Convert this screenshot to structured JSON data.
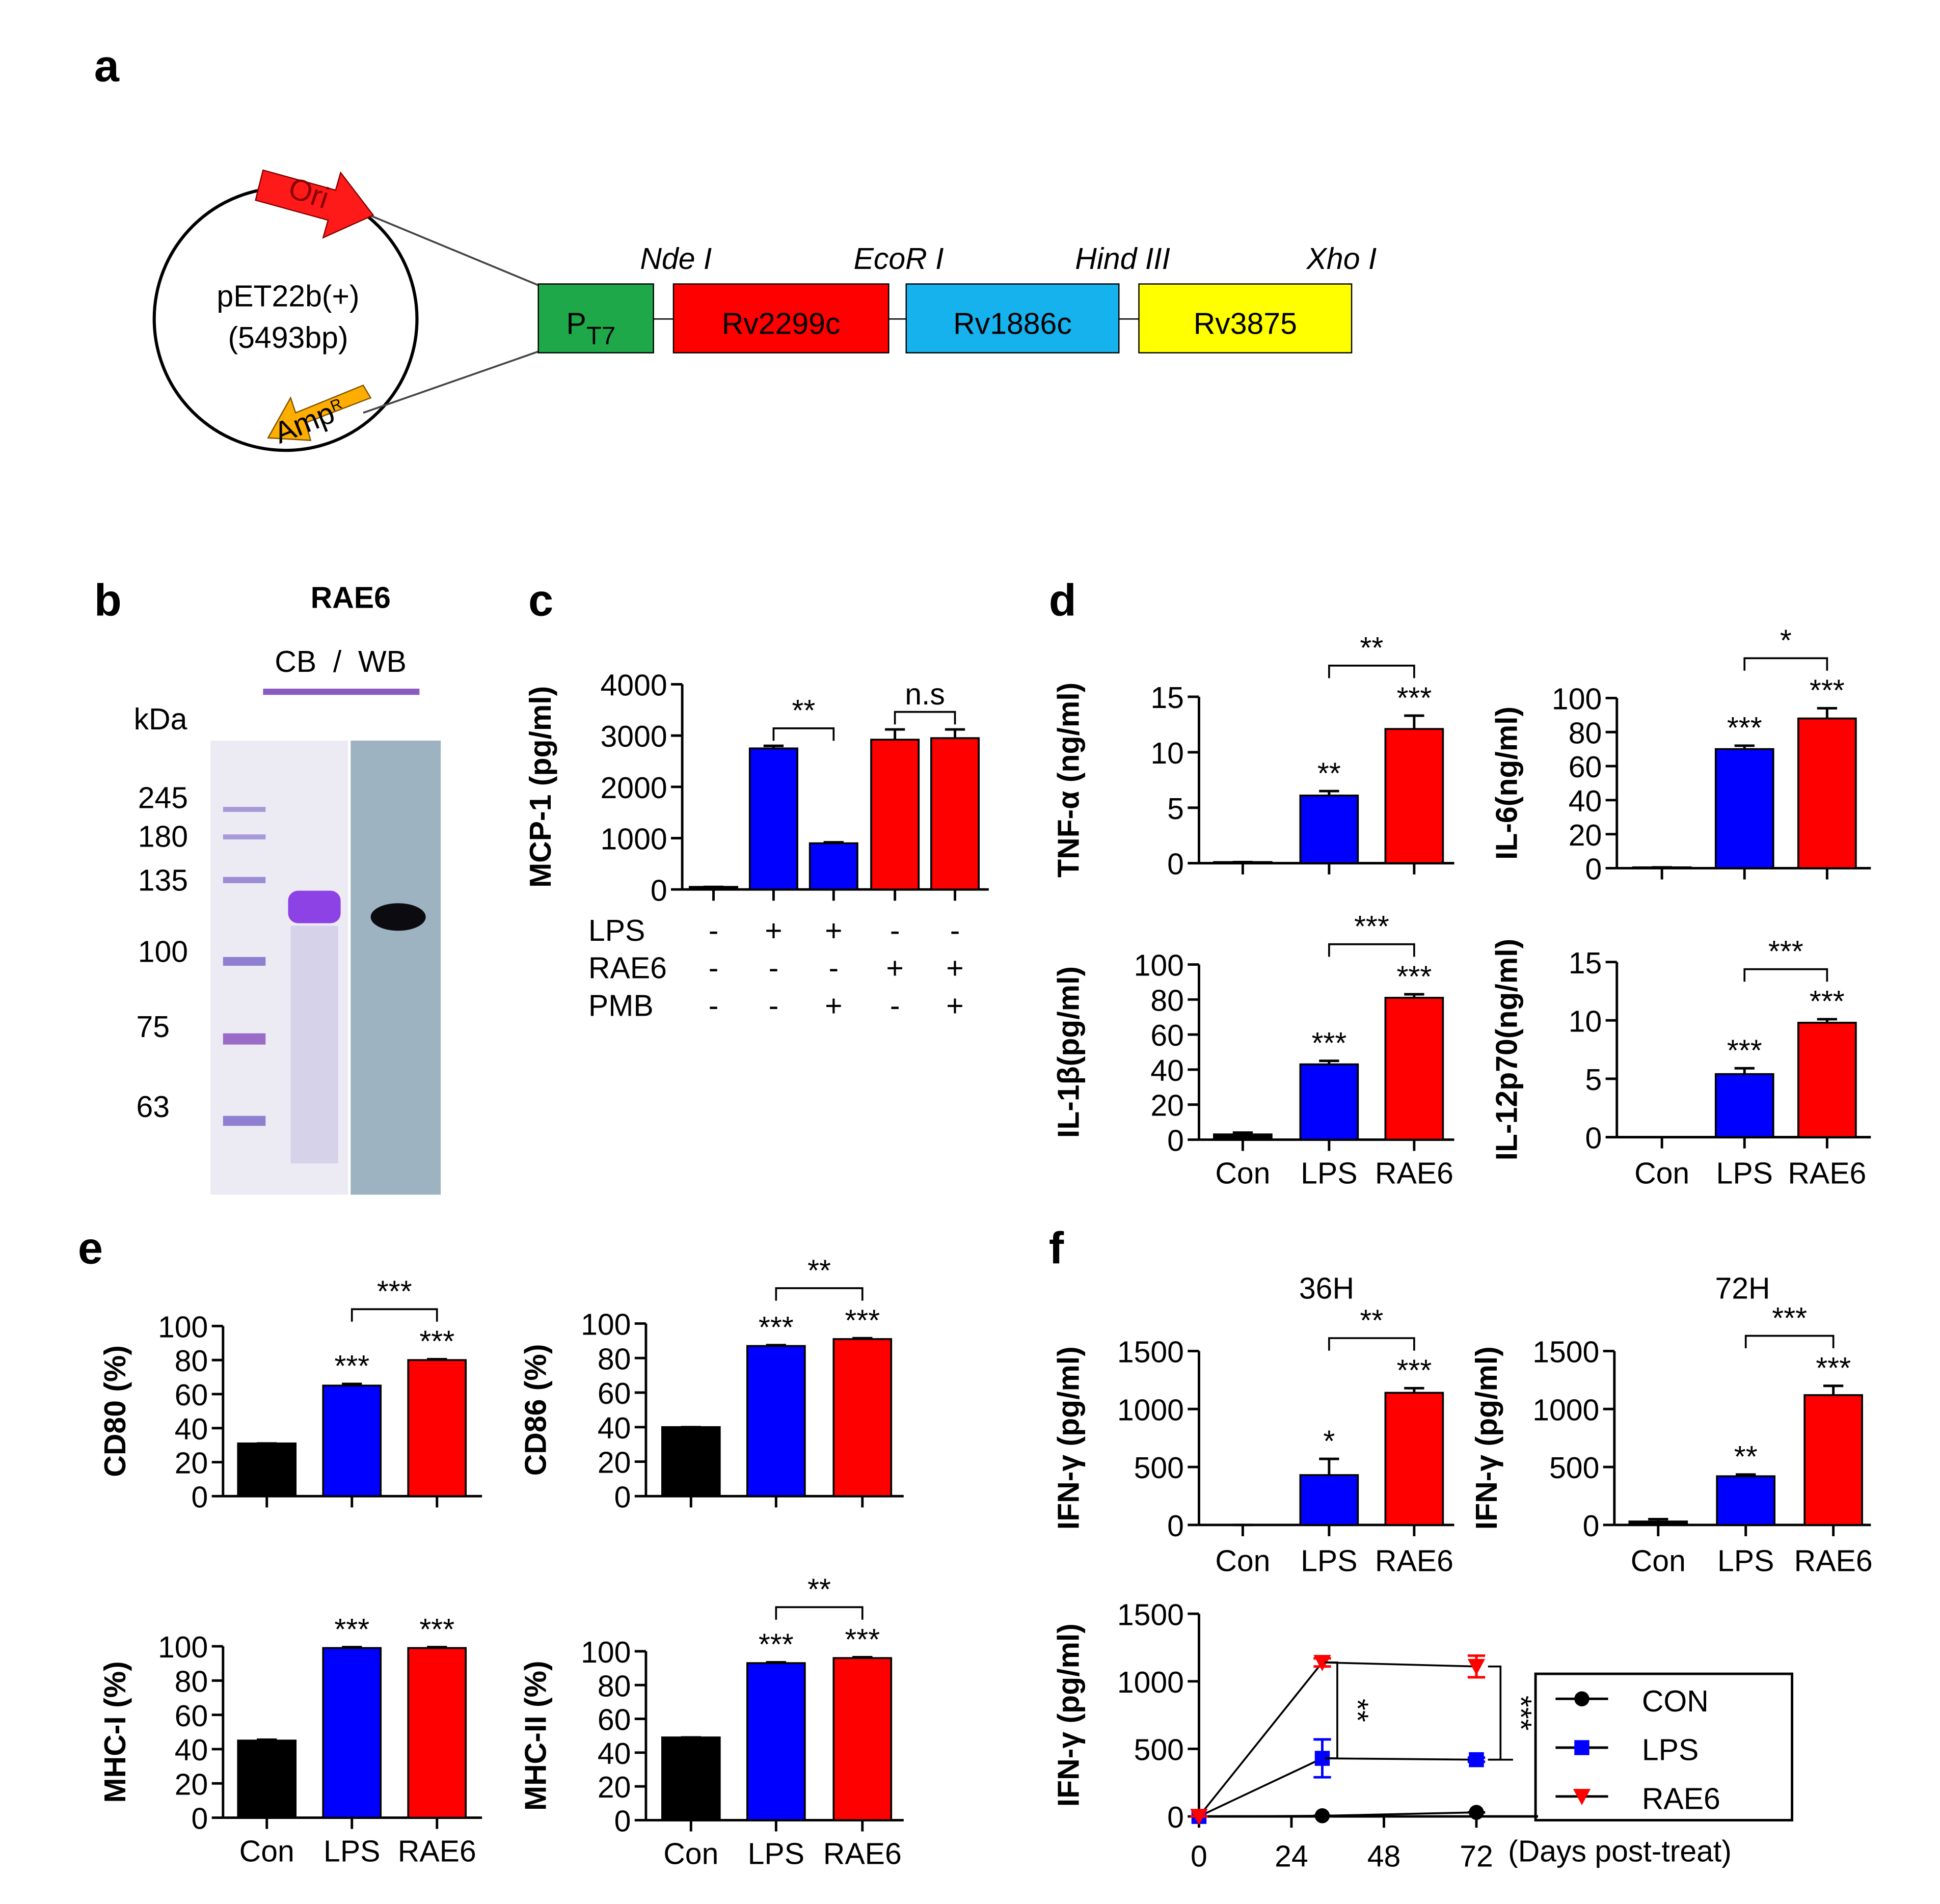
{
  "panel_labels": [
    "a",
    "b",
    "c",
    "d",
    "e",
    "f"
  ],
  "plasmid": {
    "name": "pET22b(+)",
    "size": "(5493bp)",
    "ori": "Ori",
    "amp": {
      "text": "Amp",
      "superscript": "R"
    },
    "promoter": {
      "text": "P",
      "subscript": "T7"
    },
    "genes": [
      "Rv2299c",
      "Rv1886c",
      "Rv3875"
    ],
    "sites": [
      "Nde I",
      "EcoR I",
      "Hind III",
      "Xho I"
    ]
  },
  "gel": {
    "title": "RAE6",
    "lanes": "CB  /  WB",
    "unit": "kDa",
    "markers": [
      "245",
      "180",
      "135",
      "100",
      "75",
      "63"
    ]
  },
  "chart_data": [
    {
      "type": "bar",
      "ylabel": "MCP-1 (pg/ml)",
      "categories": [
        null,
        null,
        null,
        null,
        null
      ],
      "values": [
        50,
        2750,
        900,
        2920,
        2950
      ],
      "errors": [
        0,
        50,
        20,
        200,
        170
      ],
      "colors": [
        "#000000",
        "#0000ff",
        "#0000ff",
        "#ff0000",
        "#ff0000"
      ],
      "bar_labels": [
        null,
        null,
        null,
        null,
        null
      ],
      "brackets": [
        {
          "text": "**",
          "between": [
            1,
            2
          ]
        },
        {
          "text": "n.s",
          "between": [
            3,
            4
          ]
        }
      ],
      "ylim": [
        0,
        4000
      ],
      "yticks": [
        0,
        1000,
        2000,
        3000,
        4000
      ],
      "conditions": [
        {
          "name": "LPS",
          "signs": [
            "-",
            "+",
            "+",
            "-",
            "-"
          ]
        },
        {
          "name": "RAE6",
          "signs": [
            "-",
            "-",
            "-",
            "+",
            "+"
          ]
        },
        {
          "name": "PMB",
          "signs": [
            "-",
            "-",
            "+",
            "-",
            "+"
          ]
        }
      ]
    },
    {
      "type": "bar",
      "ylabel": "TNF-α (ng/ml)",
      "categories": [
        null,
        null,
        null
      ],
      "values": [
        0.1,
        6.1,
        12.1
      ],
      "errors": [
        0,
        0.4,
        1.2
      ],
      "colors": [
        "#000000",
        "#0000ff",
        "#ff0000"
      ],
      "bar_labels": [
        null,
        "**",
        "***"
      ],
      "brackets": [
        {
          "text": "**",
          "between": [
            1,
            2
          ]
        }
      ],
      "ylim": [
        0,
        15
      ],
      "yticks": [
        0,
        5,
        10,
        15
      ]
    },
    {
      "type": "bar",
      "ylabel": "IL-6(ng/ml)",
      "categories": [
        null,
        null,
        null
      ],
      "values": [
        0.5,
        70,
        88
      ],
      "errors": [
        0,
        2,
        6
      ],
      "colors": [
        "#000000",
        "#0000ff",
        "#ff0000"
      ],
      "bar_labels": [
        null,
        "***",
        "***"
      ],
      "brackets": [
        {
          "text": "*",
          "between": [
            1,
            2
          ]
        }
      ],
      "ylim": [
        0,
        100
      ],
      "yticks": [
        0,
        20,
        40,
        60,
        80,
        100
      ]
    },
    {
      "type": "bar",
      "ylabel": "IL-1β(pg/ml)",
      "categories": [
        "Con",
        "LPS",
        "RAE6"
      ],
      "values": [
        3,
        43,
        81
      ],
      "errors": [
        1,
        2,
        2
      ],
      "colors": [
        "#000000",
        "#0000ff",
        "#ff0000"
      ],
      "bar_labels": [
        null,
        "***",
        "***"
      ],
      "brackets": [
        {
          "text": "***",
          "between": [
            1,
            2
          ]
        }
      ],
      "ylim": [
        0,
        100
      ],
      "yticks": [
        0,
        20,
        40,
        60,
        80,
        100
      ]
    },
    {
      "type": "bar",
      "ylabel": "IL-12p70(ng/ml)",
      "categories": [
        "Con",
        "LPS",
        "RAE6"
      ],
      "values": [
        0,
        5.4,
        9.8
      ],
      "errors": [
        0,
        0.5,
        0.3
      ],
      "colors": [
        "#000000",
        "#0000ff",
        "#ff0000"
      ],
      "bar_labels": [
        null,
        "***",
        "***"
      ],
      "brackets": [
        {
          "text": "***",
          "between": [
            1,
            2
          ]
        }
      ],
      "ylim": [
        0,
        15
      ],
      "yticks": [
        0,
        5,
        10,
        15
      ]
    },
    {
      "type": "bar",
      "ylabel": "CD80 (%)",
      "categories": [
        null,
        null,
        null
      ],
      "values": [
        31,
        65,
        80
      ],
      "errors": [
        0,
        1,
        0.5
      ],
      "colors": [
        "#000000",
        "#0000ff",
        "#ff0000"
      ],
      "bar_labels": [
        null,
        "***",
        "***"
      ],
      "brackets": [
        {
          "text": "***",
          "between": [
            1,
            2
          ]
        }
      ],
      "ylim": [
        0,
        100
      ],
      "yticks": [
        0,
        20,
        40,
        60,
        80,
        100
      ]
    },
    {
      "type": "bar",
      "ylabel": "CD86 (%)",
      "categories": [
        null,
        null,
        null
      ],
      "values": [
        40,
        87,
        91
      ],
      "errors": [
        0,
        0.5,
        0.5
      ],
      "colors": [
        "#000000",
        "#0000ff",
        "#ff0000"
      ],
      "bar_labels": [
        null,
        "***",
        "***"
      ],
      "brackets": [
        {
          "text": "**",
          "between": [
            1,
            2
          ]
        }
      ],
      "ylim": [
        0,
        100
      ],
      "yticks": [
        0,
        20,
        40,
        60,
        80,
        100
      ]
    },
    {
      "type": "bar",
      "ylabel": "MHC-I (%)",
      "categories": [
        "Con",
        "LPS",
        "RAE6"
      ],
      "values": [
        45,
        99,
        99
      ],
      "errors": [
        0.5,
        0.5,
        0.5
      ],
      "colors": [
        "#000000",
        "#0000ff",
        "#ff0000"
      ],
      "bar_labels": [
        null,
        "***",
        "***"
      ],
      "brackets": [],
      "ylim": [
        0,
        100
      ],
      "yticks": [
        0,
        20,
        40,
        60,
        80,
        100
      ]
    },
    {
      "type": "bar",
      "ylabel": "MHC-II (%)",
      "categories": [
        "Con",
        "LPS",
        "RAE6"
      ],
      "values": [
        49,
        93,
        96
      ],
      "errors": [
        0,
        0.5,
        0.5
      ],
      "colors": [
        "#000000",
        "#0000ff",
        "#ff0000"
      ],
      "bar_labels": [
        null,
        "***",
        "***"
      ],
      "brackets": [
        {
          "text": "**",
          "between": [
            1,
            2
          ]
        }
      ],
      "ylim": [
        0,
        100
      ],
      "yticks": [
        0,
        20,
        40,
        60,
        80,
        100
      ]
    },
    {
      "type": "bar",
      "title": "36H",
      "ylabel": "IFN-γ (pg/ml)",
      "categories": [
        "Con",
        "LPS",
        "RAE6"
      ],
      "values": [
        0,
        430,
        1140
      ],
      "errors": [
        0,
        140,
        40
      ],
      "colors": [
        "#000000",
        "#0000ff",
        "#ff0000"
      ],
      "bar_labels": [
        null,
        "*",
        "***"
      ],
      "brackets": [
        {
          "text": "**",
          "between": [
            1,
            2
          ]
        }
      ],
      "ylim": [
        0,
        1500
      ],
      "yticks": [
        0,
        500,
        1000,
        1500
      ]
    },
    {
      "type": "bar",
      "title": "72H",
      "ylabel": "IFN-γ (pg/ml)",
      "categories": [
        "Con",
        "LPS",
        "RAE6"
      ],
      "values": [
        30,
        420,
        1120
      ],
      "errors": [
        20,
        15,
        80
      ],
      "colors": [
        "#000000",
        "#0000ff",
        "#ff0000"
      ],
      "bar_labels": [
        null,
        "**",
        "***"
      ],
      "brackets": [
        {
          "text": "***",
          "between": [
            1,
            2
          ]
        }
      ],
      "ylim": [
        0,
        1500
      ],
      "yticks": [
        0,
        500,
        1000,
        1500
      ]
    },
    {
      "type": "line",
      "ylabel": "IFN-γ (pg/ml)",
      "xlabel": "(Days post-treat)",
      "x": [
        0,
        32,
        72
      ],
      "xlim": [
        0,
        88
      ],
      "xticks": [
        0,
        24,
        48,
        72
      ],
      "ylim": [
        0,
        1500
      ],
      "yticks": [
        0,
        500,
        1000,
        1500
      ],
      "series": [
        {
          "name": "CON",
          "color": "#000000",
          "marker": "circle",
          "values": [
            0,
            5,
            30
          ],
          "errors": [
            0,
            0,
            0
          ]
        },
        {
          "name": "LPS",
          "color": "#0000ff",
          "marker": "square",
          "values": [
            0,
            430,
            420
          ],
          "errors": [
            0,
            140,
            15
          ]
        },
        {
          "name": "RAE6",
          "color": "#ff0000",
          "marker": "triangle",
          "values": [
            0,
            1140,
            1110
          ],
          "errors": [
            0,
            30,
            80
          ]
        }
      ],
      "brackets": [
        {
          "text": "**"
        },
        {
          "text": "***"
        }
      ]
    }
  ]
}
